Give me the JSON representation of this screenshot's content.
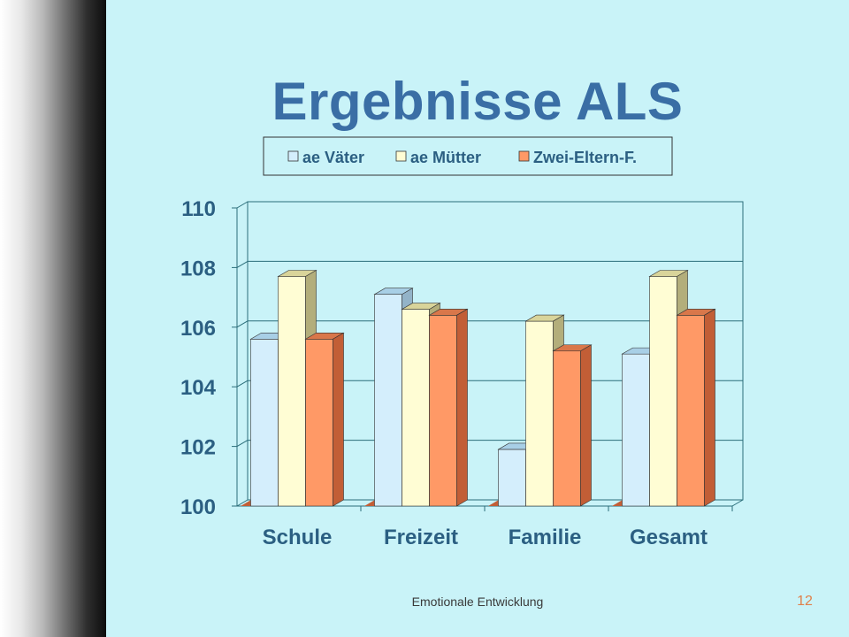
{
  "slide": {
    "title": "Ergebnisse ALS",
    "footer": "Emotionale Entwicklung",
    "page_number": "12"
  },
  "chart_data": {
    "type": "bar",
    "categories": [
      "Schule",
      "Freizeit",
      "Familie",
      "Gesamt"
    ],
    "series": [
      {
        "name": "ae Väter",
        "values": [
          105.6,
          107.1,
          101.9,
          105.1
        ],
        "color": "#d4eefc",
        "top": "#a8cfe6",
        "side": "#93b3c8"
      },
      {
        "name": "ae Mütter",
        "values": [
          107.7,
          106.6,
          106.2,
          107.7
        ],
        "color": "#fffdd4",
        "top": "#d9d49a",
        "side": "#b3ae7b"
      },
      {
        "name": "Zwei-Eltern-F.",
        "values": [
          105.6,
          106.4,
          105.2,
          106.4
        ],
        "color": "#ff9966",
        "top": "#d9774a",
        "side": "#c25e36"
      }
    ],
    "yticks": [
      "100",
      "102",
      "104",
      "106",
      "108",
      "110"
    ],
    "ylim": [
      100,
      110
    ],
    "grid": true,
    "legend_position": "top"
  }
}
